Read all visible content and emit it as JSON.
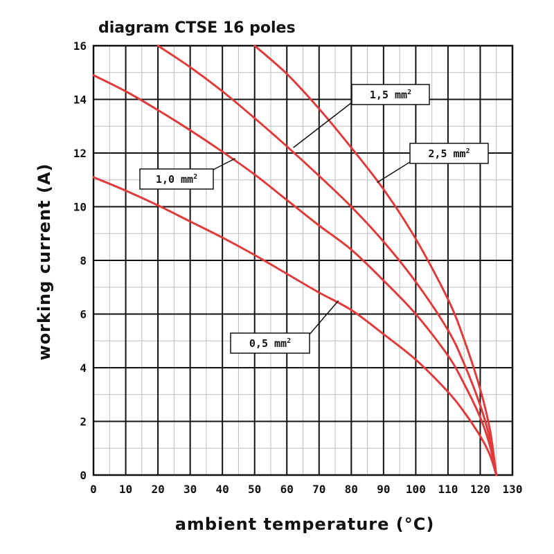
{
  "chart_data": {
    "type": "line",
    "title": "diagram CTSE 16 poles",
    "xlabel": "ambient temperature (°C)",
    "ylabel": "working current (A)",
    "xlim": [
      0,
      130
    ],
    "ylim": [
      0,
      16
    ],
    "xticks": [
      "0",
      "10",
      "20",
      "30",
      "40",
      "50",
      "60",
      "70",
      "80",
      "90",
      "100",
      "110",
      "120",
      "130"
    ],
    "yticks": [
      "0",
      "2",
      "4",
      "6",
      "8",
      "10",
      "12",
      "14",
      "16"
    ],
    "grid": true,
    "line_color": "#e03a3a",
    "series": [
      {
        "name": "0,5 mm²",
        "label": "0,5 mm",
        "sup": "2",
        "x": [
          0,
          10,
          20,
          30,
          40,
          50,
          60,
          70,
          80,
          90,
          100,
          110,
          115,
          120,
          123,
          125
        ],
        "y": [
          11.1,
          10.6,
          10.05,
          9.45,
          8.85,
          8.2,
          7.5,
          6.8,
          6.15,
          5.25,
          4.3,
          3.1,
          2.35,
          1.45,
          0.75,
          0
        ]
      },
      {
        "name": "1,0 mm²",
        "label": "1,0 mm",
        "sup": "2",
        "x": [
          0,
          10,
          20,
          30,
          40,
          50,
          60,
          70,
          80,
          90,
          100,
          110,
          115,
          120,
          123,
          125
        ],
        "y": [
          14.9,
          14.3,
          13.6,
          12.85,
          12.05,
          11.2,
          10.25,
          9.3,
          8.4,
          7.25,
          6.0,
          4.45,
          3.4,
          2.15,
          1.1,
          0
        ]
      },
      {
        "name": "1,5 mm²",
        "label": "1,5 mm",
        "sup": "2",
        "x": [
          20,
          30,
          40,
          50,
          60,
          70,
          80,
          90,
          100,
          110,
          115,
          120,
          123,
          125
        ],
        "y": [
          16.0,
          15.2,
          14.3,
          13.3,
          12.25,
          11.15,
          10.0,
          8.7,
          7.2,
          5.4,
          4.15,
          2.6,
          1.35,
          0
        ]
      },
      {
        "name": "2,5 mm²",
        "label": "2,5 mm",
        "sup": "2",
        "x": [
          50,
          60,
          70,
          80,
          90,
          100,
          110,
          115,
          120,
          123,
          125
        ],
        "y": [
          16.0,
          14.95,
          13.65,
          12.2,
          10.65,
          8.8,
          6.55,
          5.05,
          3.2,
          1.7,
          0
        ]
      }
    ]
  }
}
